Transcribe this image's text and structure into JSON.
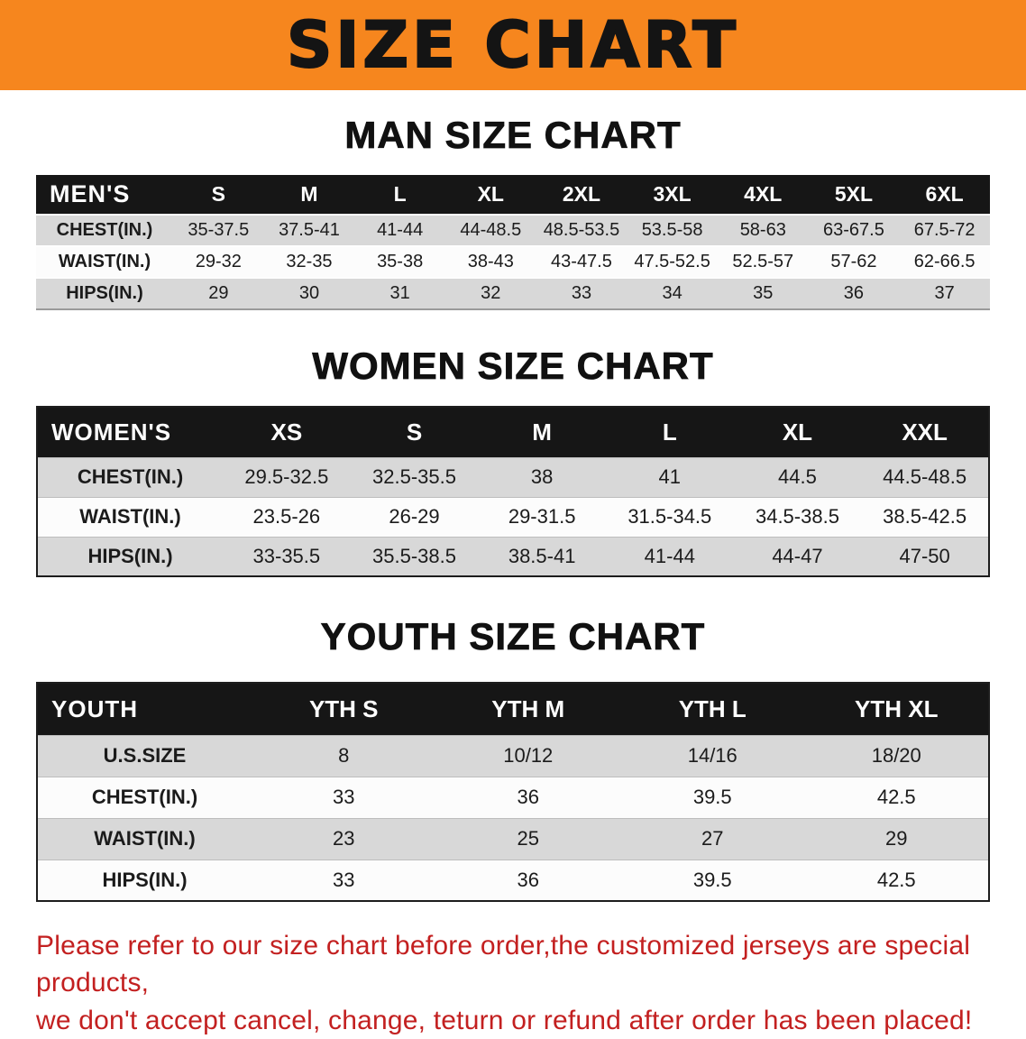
{
  "banner": {
    "title": "SIZE CHART"
  },
  "men": {
    "heading": "MAN SIZE CHART",
    "header": [
      "MEN'S",
      "S",
      "M",
      "L",
      "XL",
      "2XL",
      "3XL",
      "4XL",
      "5XL",
      "6XL"
    ],
    "rows": [
      [
        "CHEST(IN.)",
        "35-37.5",
        "37.5-41",
        "41-44",
        "44-48.5",
        "48.5-53.5",
        "53.5-58",
        "58-63",
        "63-67.5",
        "67.5-72"
      ],
      [
        "WAIST(IN.)",
        "29-32",
        "32-35",
        "35-38",
        "38-43",
        "43-47.5",
        "47.5-52.5",
        "52.5-57",
        "57-62",
        "62-66.5"
      ],
      [
        "HIPS(IN.)",
        "29",
        "30",
        "31",
        "32",
        "33",
        "34",
        "35",
        "36",
        "37"
      ]
    ]
  },
  "women": {
    "heading": "WOMEN SIZE CHART",
    "header": [
      "WOMEN'S",
      "XS",
      "S",
      "M",
      "L",
      "XL",
      "XXL"
    ],
    "rows": [
      [
        "CHEST(IN.)",
        "29.5-32.5",
        "32.5-35.5",
        "38",
        "41",
        "44.5",
        "44.5-48.5"
      ],
      [
        "WAIST(IN.)",
        "23.5-26",
        "26-29",
        "29-31.5",
        "31.5-34.5",
        "34.5-38.5",
        "38.5-42.5"
      ],
      [
        "HIPS(IN.)",
        "33-35.5",
        "35.5-38.5",
        "38.5-41",
        "41-44",
        "44-47",
        "47-50"
      ]
    ]
  },
  "youth": {
    "heading": "YOUTH SIZE CHART",
    "header": [
      "YOUTH",
      "YTH S",
      "YTH M",
      "YTH L",
      "YTH XL"
    ],
    "rows": [
      [
        "U.S.SIZE",
        "8",
        "10/12",
        "14/16",
        "18/20"
      ],
      [
        "CHEST(IN.)",
        "33",
        "36",
        "39.5",
        "42.5"
      ],
      [
        "WAIST(IN.)",
        "23",
        "25",
        "27",
        "29"
      ],
      [
        "HIPS(IN.)",
        "33",
        "36",
        "39.5",
        "42.5"
      ]
    ]
  },
  "disclaimer": {
    "line1": "Please refer to our size chart before order,the customized jerseys are special products,",
    "line2": "we don't accept cancel, change, teturn or refund after order has been placed!"
  },
  "colors": {
    "banner_bg": "#f6861e",
    "title_color": "#141414",
    "table_header_bg": "#161616",
    "row_alt": "#d8d8d8",
    "row_base": "#fcfcfc",
    "disclaimer_red": "#c32020"
  }
}
